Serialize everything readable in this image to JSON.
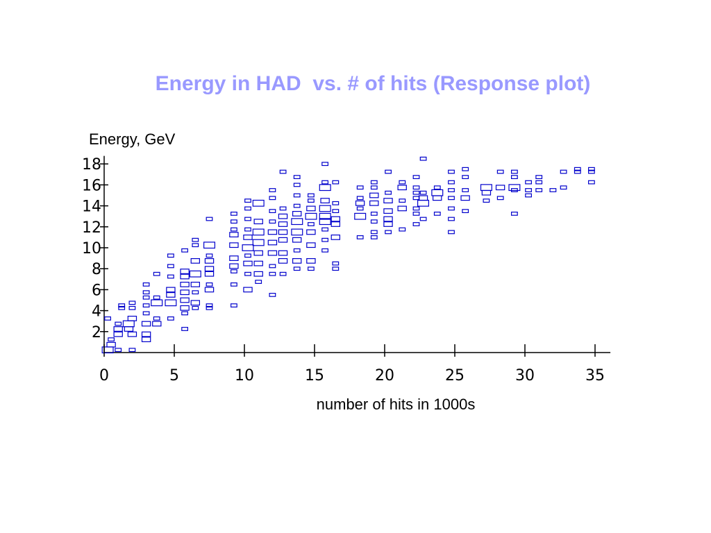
{
  "chart_data": {
    "type": "heatmap",
    "title": "Energy in HAD  vs. # of hits (Response plot)",
    "xlabel": "number of hits in 1000s",
    "ylabel": "Energy, GeV",
    "xlim": [
      0,
      35.5
    ],
    "ylim": [
      0,
      18.5
    ],
    "x_ticks": [
      0,
      5,
      10,
      15,
      20,
      25,
      30,
      35
    ],
    "y_ticks": [
      2,
      4,
      6,
      8,
      10,
      12,
      14,
      16,
      18
    ],
    "grid": false,
    "legend": "none",
    "box_color": "#0000cc",
    "title_color": "#9999ff",
    "bin_size": [
      0.5,
      0.5
    ],
    "cells": [
      [
        0.25,
        0.25,
        3
      ],
      [
        0.5,
        0.75,
        2
      ],
      [
        0.5,
        1.25,
        1
      ],
      [
        0.25,
        3.25,
        1
      ],
      [
        1.0,
        1.75,
        2
      ],
      [
        1.0,
        2.25,
        2
      ],
      [
        1.0,
        2.75,
        1
      ],
      [
        1.25,
        4.25,
        1
      ],
      [
        1.25,
        4.5,
        1
      ],
      [
        1.0,
        0.25,
        1
      ],
      [
        1.75,
        2.75,
        3
      ],
      [
        1.75,
        2.25,
        2
      ],
      [
        2.0,
        1.75,
        2
      ],
      [
        2.0,
        3.25,
        2
      ],
      [
        2.0,
        4.25,
        1
      ],
      [
        2.0,
        4.75,
        1
      ],
      [
        2.0,
        0.25,
        1
      ],
      [
        3.0,
        1.25,
        2
      ],
      [
        3.0,
        1.75,
        2
      ],
      [
        3.0,
        2.75,
        2
      ],
      [
        3.0,
        3.75,
        1
      ],
      [
        3.0,
        4.5,
        1
      ],
      [
        3.0,
        5.25,
        1
      ],
      [
        3.0,
        5.75,
        1
      ],
      [
        3.0,
        6.5,
        1
      ],
      [
        3.75,
        2.75,
        2
      ],
      [
        3.75,
        3.25,
        1
      ],
      [
        3.75,
        4.75,
        3
      ],
      [
        3.75,
        5.25,
        1
      ],
      [
        3.75,
        7.5,
        1
      ],
      [
        4.75,
        3.25,
        1
      ],
      [
        4.75,
        4.75,
        3
      ],
      [
        4.75,
        5.5,
        2
      ],
      [
        4.75,
        6.0,
        2
      ],
      [
        4.75,
        7.25,
        1
      ],
      [
        4.75,
        8.25,
        1
      ],
      [
        4.75,
        9.25,
        1
      ],
      [
        5.75,
        2.25,
        1
      ],
      [
        5.75,
        3.75,
        1
      ],
      [
        5.75,
        4.25,
        2
      ],
      [
        5.75,
        5.0,
        2
      ],
      [
        5.75,
        5.75,
        2
      ],
      [
        5.75,
        6.5,
        2
      ],
      [
        5.75,
        7.25,
        2
      ],
      [
        5.75,
        7.75,
        2
      ],
      [
        5.75,
        9.75,
        1
      ],
      [
        6.5,
        4.25,
        1
      ],
      [
        6.5,
        4.75,
        2
      ],
      [
        6.5,
        5.75,
        1
      ],
      [
        6.5,
        6.5,
        2
      ],
      [
        6.5,
        7.5,
        3
      ],
      [
        6.5,
        8.75,
        2
      ],
      [
        6.5,
        10.25,
        1
      ],
      [
        6.5,
        10.75,
        1
      ],
      [
        7.5,
        4.25,
        1
      ],
      [
        7.5,
        4.5,
        1
      ],
      [
        7.5,
        6.0,
        2
      ],
      [
        7.5,
        6.5,
        1
      ],
      [
        7.5,
        7.5,
        2
      ],
      [
        7.5,
        8.0,
        2
      ],
      [
        7.5,
        8.75,
        2
      ],
      [
        7.5,
        9.25,
        1
      ],
      [
        7.5,
        10.25,
        3
      ],
      [
        7.5,
        12.75,
        1
      ],
      [
        9.25,
        4.5,
        1
      ],
      [
        9.25,
        6.5,
        1
      ],
      [
        9.25,
        7.75,
        1
      ],
      [
        9.25,
        8.25,
        2
      ],
      [
        9.25,
        9.0,
        2
      ],
      [
        9.25,
        10.25,
        2
      ],
      [
        9.25,
        11.25,
        2
      ],
      [
        9.25,
        11.75,
        1
      ],
      [
        9.25,
        12.5,
        1
      ],
      [
        9.25,
        13.25,
        1
      ],
      [
        10.25,
        6.0,
        2
      ],
      [
        10.25,
        7.5,
        1
      ],
      [
        10.25,
        8.5,
        2
      ],
      [
        10.25,
        9.25,
        1
      ],
      [
        10.25,
        10.0,
        3
      ],
      [
        10.25,
        11.0,
        2
      ],
      [
        10.25,
        11.75,
        1
      ],
      [
        10.25,
        12.75,
        1
      ],
      [
        10.25,
        13.75,
        1
      ],
      [
        10.25,
        14.5,
        1
      ],
      [
        11.0,
        6.75,
        1
      ],
      [
        11.0,
        7.5,
        2
      ],
      [
        11.0,
        8.5,
        2
      ],
      [
        11.0,
        9.5,
        2
      ],
      [
        11.0,
        10.5,
        3
      ],
      [
        11.0,
        11.5,
        3
      ],
      [
        11.0,
        12.5,
        2
      ],
      [
        11.0,
        14.25,
        3
      ],
      [
        12.0,
        5.5,
        1
      ],
      [
        12.0,
        7.5,
        1
      ],
      [
        12.0,
        8.25,
        1
      ],
      [
        12.0,
        9.5,
        2
      ],
      [
        12.0,
        10.5,
        2
      ],
      [
        12.0,
        11.5,
        2
      ],
      [
        12.0,
        12.5,
        1
      ],
      [
        12.0,
        13.5,
        1
      ],
      [
        12.0,
        14.75,
        1
      ],
      [
        12.0,
        15.5,
        1
      ],
      [
        12.75,
        7.5,
        1
      ],
      [
        12.75,
        8.75,
        2
      ],
      [
        12.75,
        9.5,
        2
      ],
      [
        12.75,
        10.75,
        2
      ],
      [
        12.75,
        11.5,
        2
      ],
      [
        12.75,
        12.25,
        2
      ],
      [
        12.75,
        13.0,
        2
      ],
      [
        12.75,
        13.75,
        1
      ],
      [
        12.75,
        17.25,
        1
      ],
      [
        13.75,
        8.0,
        1
      ],
      [
        13.75,
        8.75,
        2
      ],
      [
        13.75,
        9.75,
        1
      ],
      [
        13.75,
        10.75,
        2
      ],
      [
        13.75,
        11.5,
        3
      ],
      [
        13.75,
        12.5,
        3
      ],
      [
        13.75,
        13.25,
        2
      ],
      [
        13.75,
        14.0,
        1
      ],
      [
        13.75,
        15.0,
        1
      ],
      [
        13.75,
        16.0,
        1
      ],
      [
        13.75,
        16.75,
        1
      ],
      [
        14.75,
        8.0,
        1
      ],
      [
        14.75,
        8.75,
        2
      ],
      [
        14.75,
        10.25,
        2
      ],
      [
        14.75,
        11.5,
        2
      ],
      [
        14.75,
        12.25,
        1
      ],
      [
        14.75,
        13.0,
        3
      ],
      [
        14.75,
        13.75,
        2
      ],
      [
        14.75,
        14.5,
        1
      ],
      [
        14.75,
        15.0,
        1
      ],
      [
        15.75,
        9.75,
        1
      ],
      [
        15.75,
        10.75,
        1
      ],
      [
        15.75,
        11.75,
        1
      ],
      [
        15.75,
        12.5,
        3
      ],
      [
        15.75,
        13.0,
        3
      ],
      [
        15.75,
        13.75,
        3
      ],
      [
        15.75,
        14.5,
        2
      ],
      [
        15.75,
        15.75,
        3
      ],
      [
        15.75,
        16.25,
        1
      ],
      [
        15.75,
        18.0,
        1
      ],
      [
        16.5,
        8.0,
        1
      ],
      [
        16.5,
        8.5,
        1
      ],
      [
        16.5,
        11.0,
        2
      ],
      [
        16.5,
        12.25,
        2
      ],
      [
        16.5,
        12.75,
        2
      ],
      [
        16.5,
        13.5,
        1
      ],
      [
        16.5,
        14.25,
        1
      ],
      [
        16.5,
        16.25,
        1
      ],
      [
        18.25,
        11.0,
        1
      ],
      [
        18.25,
        13.0,
        3
      ],
      [
        18.25,
        13.75,
        1
      ],
      [
        18.25,
        14.25,
        2
      ],
      [
        18.25,
        14.75,
        1
      ],
      [
        18.25,
        15.75,
        1
      ],
      [
        19.25,
        11.0,
        1
      ],
      [
        19.25,
        11.5,
        1
      ],
      [
        19.25,
        12.5,
        1
      ],
      [
        19.25,
        13.25,
        1
      ],
      [
        19.25,
        14.25,
        2
      ],
      [
        19.25,
        15.0,
        2
      ],
      [
        19.25,
        15.75,
        1
      ],
      [
        19.25,
        16.25,
        1
      ],
      [
        20.25,
        11.5,
        1
      ],
      [
        20.25,
        12.25,
        2
      ],
      [
        20.25,
        12.75,
        2
      ],
      [
        20.25,
        13.5,
        2
      ],
      [
        20.25,
        14.5,
        2
      ],
      [
        20.25,
        15.25,
        1
      ],
      [
        20.25,
        17.25,
        1
      ],
      [
        21.25,
        11.75,
        1
      ],
      [
        21.25,
        13.75,
        2
      ],
      [
        21.25,
        14.5,
        1
      ],
      [
        21.25,
        15.75,
        2
      ],
      [
        21.25,
        16.25,
        1
      ],
      [
        22.25,
        12.25,
        1
      ],
      [
        22.25,
        13.25,
        1
      ],
      [
        22.25,
        13.75,
        1
      ],
      [
        22.25,
        14.75,
        1
      ],
      [
        22.25,
        15.25,
        1
      ],
      [
        22.25,
        15.75,
        1
      ],
      [
        22.25,
        16.75,
        1
      ],
      [
        22.75,
        12.75,
        1
      ],
      [
        22.75,
        14.25,
        3
      ],
      [
        22.75,
        14.75,
        2
      ],
      [
        22.75,
        15.25,
        1
      ],
      [
        22.75,
        18.5,
        1
      ],
      [
        23.75,
        13.25,
        1
      ],
      [
        23.75,
        14.75,
        2
      ],
      [
        23.75,
        15.25,
        3
      ],
      [
        23.75,
        15.75,
        1
      ],
      [
        24.75,
        11.5,
        1
      ],
      [
        24.75,
        12.75,
        1
      ],
      [
        24.75,
        13.75,
        1
      ],
      [
        24.75,
        14.75,
        1
      ],
      [
        24.75,
        15.5,
        1
      ],
      [
        24.75,
        16.25,
        1
      ],
      [
        24.75,
        17.25,
        1
      ],
      [
        25.75,
        13.5,
        1
      ],
      [
        25.75,
        14.75,
        2
      ],
      [
        25.75,
        15.5,
        1
      ],
      [
        25.75,
        16.75,
        1
      ],
      [
        25.75,
        17.5,
        1
      ],
      [
        27.25,
        14.5,
        1
      ],
      [
        27.25,
        15.25,
        2
      ],
      [
        27.25,
        15.75,
        3
      ],
      [
        28.25,
        14.75,
        1
      ],
      [
        28.25,
        15.75,
        2
      ],
      [
        28.25,
        17.25,
        1
      ],
      [
        29.25,
        13.25,
        1
      ],
      [
        29.25,
        15.5,
        1
      ],
      [
        29.25,
        15.75,
        3
      ],
      [
        29.25,
        16.75,
        1
      ],
      [
        29.25,
        17.25,
        1
      ],
      [
        30.25,
        15.0,
        1
      ],
      [
        30.25,
        15.5,
        1
      ],
      [
        30.25,
        16.25,
        1
      ],
      [
        31.0,
        15.5,
        1
      ],
      [
        31.0,
        16.25,
        1
      ],
      [
        31.0,
        16.75,
        1
      ],
      [
        32.0,
        15.5,
        1
      ],
      [
        32.75,
        15.75,
        1
      ],
      [
        32.75,
        17.25,
        1
      ],
      [
        33.75,
        17.25,
        1
      ],
      [
        33.75,
        17.5,
        1
      ],
      [
        34.75,
        16.25,
        1
      ],
      [
        34.75,
        17.25,
        1
      ],
      [
        34.75,
        17.5,
        1
      ]
    ]
  }
}
